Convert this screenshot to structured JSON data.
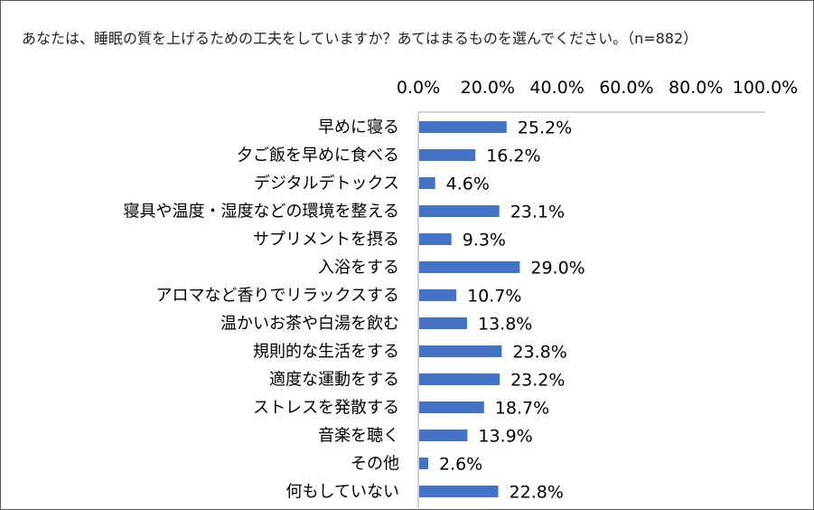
{
  "chart_data": {
    "type": "bar",
    "orientation": "horizontal",
    "title": "あなたは、睡眠の質を上げるための工夫をしていますか？あてはまるものを選んでください。（n=882）",
    "xlabel": "",
    "ylabel": "",
    "xlim": [
      0,
      100
    ],
    "x_ticks": [
      "0.0%",
      "20.0%",
      "40.0%",
      "60.0%",
      "80.0%",
      "100.0%"
    ],
    "grid": false,
    "legend": "none",
    "bar_color": "#4472C4",
    "categories": [
      "早めに寝る",
      "夕ご飯を早めに食べる",
      "デジタルデトックス",
      "寝具や温度・湿度などの環境を整える",
      "サプリメントを摂る",
      "入浴をする",
      "アロマなど香りでリラックスする",
      "温かいお茶や白湯を飲む",
      "規則的な生活をする",
      "適度な運動をする",
      "ストレスを発散する",
      "音楽を聴く",
      "その他",
      "何もしていない"
    ],
    "values": [
      25.2,
      16.2,
      4.6,
      23.1,
      9.3,
      29.0,
      10.7,
      13.8,
      23.8,
      23.2,
      18.7,
      13.9,
      2.6,
      22.8
    ],
    "value_labels": [
      "25.2%",
      "16.2%",
      "4.6%",
      "23.1%",
      "9.3%",
      "29.0%",
      "10.7%",
      "13.8%",
      "23.8%",
      "23.2%",
      "18.7%",
      "13.9%",
      "2.6%",
      "22.8%"
    ]
  }
}
